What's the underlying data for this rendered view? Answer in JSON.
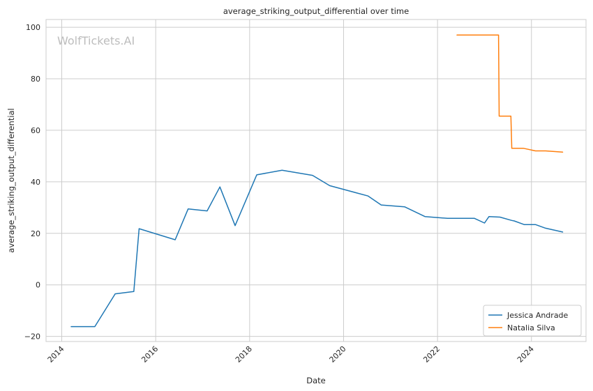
{
  "chart_data": {
    "type": "line",
    "title": "average_striking_output_differential over time",
    "xlabel": "Date",
    "ylabel": "average_striking_output_differential",
    "watermark": "WolfTickets.AI",
    "xlim": [
      "2013-09-01",
      "2025-03-01"
    ],
    "ylim": [
      -22,
      103
    ],
    "x_ticks": [
      "2014",
      "2016",
      "2018",
      "2020",
      "2022",
      "2024"
    ],
    "y_ticks": [
      -20,
      0,
      20,
      40,
      60,
      80,
      100
    ],
    "grid": true,
    "legend_position": "lower-right",
    "series": [
      {
        "name": "Jessica Andrade",
        "color": "#1f77b4",
        "points": [
          [
            "2014-03-15",
            -16.2
          ],
          [
            "2014-09-15",
            -16.2
          ],
          [
            "2015-02-20",
            -3.5
          ],
          [
            "2015-07-15",
            -2.6
          ],
          [
            "2015-08-25",
            21.8
          ],
          [
            "2016-06-01",
            17.5
          ],
          [
            "2016-09-10",
            29.5
          ],
          [
            "2017-02-05",
            28.7
          ],
          [
            "2017-05-15",
            38.0
          ],
          [
            "2017-09-10",
            23.0
          ],
          [
            "2018-02-25",
            42.7
          ],
          [
            "2018-09-10",
            44.5
          ],
          [
            "2019-05-05",
            42.5
          ],
          [
            "2019-09-15",
            38.5
          ],
          [
            "2020-07-10",
            34.5
          ],
          [
            "2020-10-20",
            31.0
          ],
          [
            "2021-04-20",
            30.3
          ],
          [
            "2021-09-25",
            26.5
          ],
          [
            "2022-03-20",
            25.8
          ],
          [
            "2022-10-15",
            25.8
          ],
          [
            "2023-01-01",
            24.0
          ],
          [
            "2023-02-05",
            26.5
          ],
          [
            "2023-05-01",
            26.3
          ],
          [
            "2023-08-01",
            25.0
          ],
          [
            "2023-08-20",
            24.8
          ],
          [
            "2023-11-05",
            23.4
          ],
          [
            "2024-02-01",
            23.4
          ],
          [
            "2024-04-20",
            22.0
          ],
          [
            "2024-08-31",
            20.5
          ]
        ]
      },
      {
        "name": "Natalia Silva",
        "color": "#ff7f0e",
        "points": [
          [
            "2022-06-01",
            97.0
          ],
          [
            "2023-04-20",
            97.0
          ],
          [
            "2023-04-25",
            65.5
          ],
          [
            "2023-07-25",
            65.5
          ],
          [
            "2023-08-01",
            53.0
          ],
          [
            "2023-11-01",
            53.0
          ],
          [
            "2024-02-01",
            52.0
          ],
          [
            "2024-04-20",
            52.0
          ],
          [
            "2024-08-31",
            51.5
          ]
        ]
      }
    ]
  }
}
